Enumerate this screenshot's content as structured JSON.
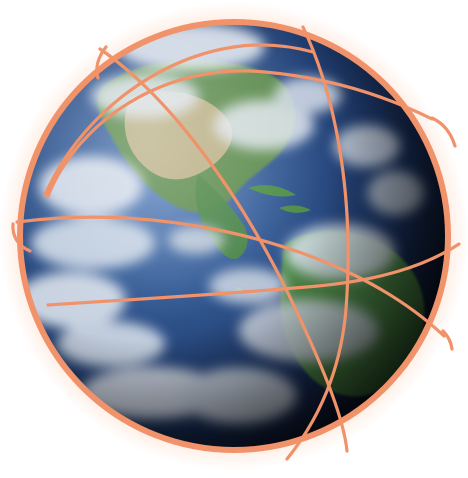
{
  "image": {
    "subject": "globe",
    "colors": {
      "ocean_light": "#4b72ad",
      "ocean_mid": "#223f70",
      "ocean_dark": "#0d1730",
      "land_green": "#4d8a46",
      "land_desert": "#c8b48a",
      "cloud": "#e8edf3",
      "ring": "#f0926a",
      "glow": "#ffd7c0",
      "shadow": "#050505"
    }
  }
}
